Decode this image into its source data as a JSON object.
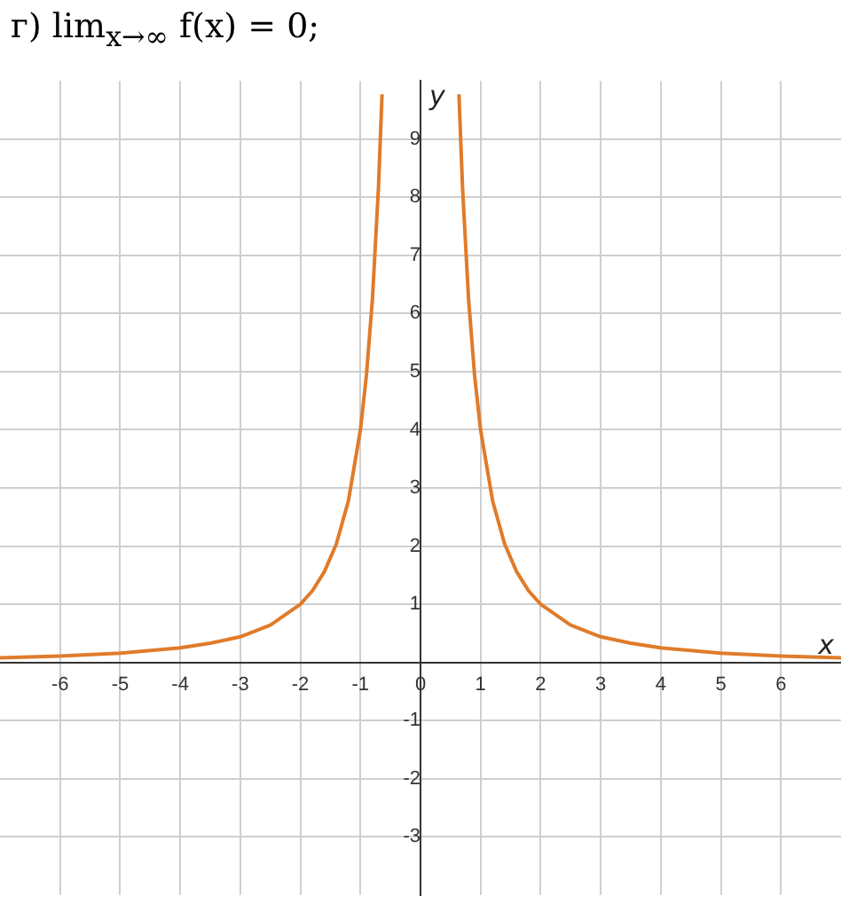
{
  "chart_data": {
    "type": "line",
    "title": "г) lim$_{x→∞}$ f(x) = 0;",
    "xlabel": "x",
    "ylabel": "y",
    "xlim": [
      -7,
      7
    ],
    "ylim": [
      -4,
      10
    ],
    "xticks": [
      -6,
      -5,
      -4,
      -3,
      -2,
      -1,
      {
        "value": 0,
        "label": "0"
      },
      1,
      2,
      3,
      4,
      5,
      6
    ],
    "yticks": [
      -3,
      -2,
      -1,
      {
        "value": 0,
        "label": null
      },
      1,
      2,
      3,
      4,
      5,
      6,
      7,
      8,
      9
    ],
    "grid": true,
    "legend": false,
    "marker": "none",
    "line_style": "solid",
    "series": [
      {
        "color": "#e07b2a",
        "x": [
          -7,
          -6,
          -5,
          -4,
          -3.5,
          -3,
          -2.5,
          -2,
          -1.8,
          -1.6,
          -1.4,
          -1.2,
          -1,
          -0.9,
          -0.8,
          -0.7,
          -0.64,
          0,
          0.64,
          0.7,
          0.8,
          0.9,
          1,
          1.2,
          1.4,
          1.6,
          1.8,
          2,
          2.5,
          3,
          3.5,
          4,
          5,
          6,
          7
        ],
        "values": [
          0.08,
          0.11,
          0.16,
          0.25,
          0.33,
          0.44,
          0.64,
          1,
          1.23,
          1.56,
          2.04,
          2.78,
          4,
          4.94,
          6.25,
          8.16,
          9.77,
          null,
          9.77,
          8.16,
          6.25,
          4.94,
          4,
          2.78,
          2.04,
          1.56,
          1.23,
          1,
          0.64,
          0.44,
          0.33,
          0.25,
          0.16,
          0.11,
          0.08
        ]
      }
    ]
  }
}
